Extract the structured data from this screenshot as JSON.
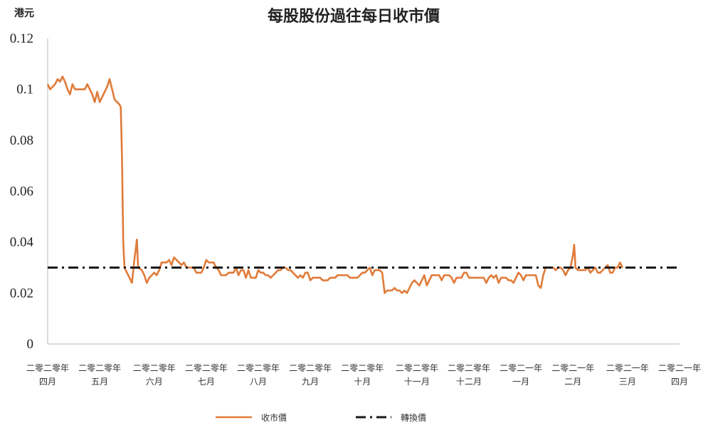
{
  "chart_data": {
    "type": "line",
    "title": "每股股份過往每日收市價",
    "ylabel": "港元",
    "ylim": [
      0,
      0.12
    ],
    "yticks": [
      {
        "value": 0,
        "label": "0"
      },
      {
        "value": 0.02,
        "label": "0.02"
      },
      {
        "value": 0.04,
        "label": "0.04"
      },
      {
        "value": 0.06,
        "label": "0.06"
      },
      {
        "value": 0.08,
        "label": "0.08"
      },
      {
        "value": 0.1,
        "label": "0.1"
      },
      {
        "value": 0.12,
        "label": "0.12"
      }
    ],
    "grid": false,
    "legend_position": "bottom",
    "x_range": [
      0,
      255
    ],
    "x_ticks": [
      {
        "x": 0,
        "line1": "二零二零年",
        "line2": "四月"
      },
      {
        "x": 21,
        "line1": "二零二零年",
        "line2": "五月"
      },
      {
        "x": 43,
        "line1": "二零二零年",
        "line2": "六月"
      },
      {
        "x": 64,
        "line1": "二零二零年",
        "line2": "七月"
      },
      {
        "x": 85,
        "line1": "二零二零年",
        "line2": "八月"
      },
      {
        "x": 106,
        "line1": "二零二零年",
        "line2": "九月"
      },
      {
        "x": 127,
        "line1": "二零二零年",
        "line2": "十月"
      },
      {
        "x": 149,
        "line1": "二零二零年",
        "line2": "十一月"
      },
      {
        "x": 170,
        "line1": "二零二零年",
        "line2": "十二月"
      },
      {
        "x": 191,
        "line1": "二零二一年",
        "line2": "一月"
      },
      {
        "x": 212,
        "line1": "二零二一年",
        "line2": "二月"
      },
      {
        "x": 234,
        "line1": "二零二一年",
        "line2": "三月"
      },
      {
        "x": 255,
        "line1": "二零二一年",
        "line2": "四月"
      }
    ],
    "series": [
      {
        "name": "收市價",
        "color": "#E07B39",
        "style": "solid",
        "points": [
          [
            0,
            0.102
          ],
          [
            1,
            0.1
          ],
          [
            2,
            0.101
          ],
          [
            3,
            0.102
          ],
          [
            4,
            0.104
          ],
          [
            5,
            0.103
          ],
          [
            6,
            0.105
          ],
          [
            7,
            0.103
          ],
          [
            8,
            0.1
          ],
          [
            9,
            0.098
          ],
          [
            10,
            0.102
          ],
          [
            11,
            0.1
          ],
          [
            12,
            0.1
          ],
          [
            13,
            0.1
          ],
          [
            14,
            0.1
          ],
          [
            15,
            0.1
          ],
          [
            16,
            0.102
          ],
          [
            17,
            0.1
          ],
          [
            18,
            0.098
          ],
          [
            19,
            0.095
          ],
          [
            20,
            0.099
          ],
          [
            21,
            0.095
          ],
          [
            22,
            0.097
          ],
          [
            23,
            0.099
          ],
          [
            24,
            0.101
          ],
          [
            25,
            0.104
          ],
          [
            26,
            0.1
          ],
          [
            27,
            0.096
          ],
          [
            28,
            0.095
          ],
          [
            29,
            0.094
          ],
          [
            29.5,
            0.093
          ],
          [
            30,
            0.073
          ],
          [
            30.5,
            0.04
          ],
          [
            31,
            0.03
          ],
          [
            33,
            0.026
          ],
          [
            34,
            0.024
          ],
          [
            35,
            0.033
          ],
          [
            35.5,
            0.037
          ],
          [
            36,
            0.041
          ],
          [
            36.5,
            0.03
          ],
          [
            38,
            0.029
          ],
          [
            39,
            0.027
          ],
          [
            40,
            0.024
          ],
          [
            41,
            0.026
          ],
          [
            42,
            0.027
          ],
          [
            43,
            0.028
          ],
          [
            44,
            0.027
          ],
          [
            45,
            0.029
          ],
          [
            46,
            0.032
          ],
          [
            47,
            0.032
          ],
          [
            48,
            0.032
          ],
          [
            49,
            0.033
          ],
          [
            50,
            0.031
          ],
          [
            51,
            0.034
          ],
          [
            52,
            0.033
          ],
          [
            53,
            0.032
          ],
          [
            54,
            0.031
          ],
          [
            55,
            0.032
          ],
          [
            56,
            0.03
          ],
          [
            57,
            0.03
          ],
          [
            58,
            0.03
          ],
          [
            59,
            0.03
          ],
          [
            60,
            0.028
          ],
          [
            61,
            0.028
          ],
          [
            62,
            0.028
          ],
          [
            63,
            0.03
          ],
          [
            64,
            0.033
          ],
          [
            65,
            0.032
          ],
          [
            66,
            0.032
          ],
          [
            67,
            0.032
          ],
          [
            68,
            0.03
          ],
          [
            69,
            0.029
          ],
          [
            70,
            0.027
          ],
          [
            71,
            0.027
          ],
          [
            72,
            0.027
          ],
          [
            73,
            0.028
          ],
          [
            74,
            0.028
          ],
          [
            75,
            0.028
          ],
          [
            76,
            0.03
          ],
          [
            77,
            0.027
          ],
          [
            78,
            0.029
          ],
          [
            79,
            0.029
          ],
          [
            80,
            0.026
          ],
          [
            81,
            0.029
          ],
          [
            82,
            0.026
          ],
          [
            83,
            0.026
          ],
          [
            84,
            0.026
          ],
          [
            85,
            0.029
          ],
          [
            86,
            0.028
          ],
          [
            87,
            0.028
          ],
          [
            88,
            0.027
          ],
          [
            89,
            0.027
          ],
          [
            90,
            0.026
          ],
          [
            91,
            0.027
          ],
          [
            92,
            0.028
          ],
          [
            93,
            0.029
          ],
          [
            94,
            0.029
          ],
          [
            95,
            0.03
          ],
          [
            96,
            0.03
          ],
          [
            97,
            0.029
          ],
          [
            98,
            0.029
          ],
          [
            99,
            0.028
          ],
          [
            100,
            0.027
          ],
          [
            101,
            0.026
          ],
          [
            102,
            0.027
          ],
          [
            103,
            0.026
          ],
          [
            104,
            0.028
          ],
          [
            105,
            0.028
          ],
          [
            106,
            0.025
          ],
          [
            107,
            0.026
          ],
          [
            108,
            0.026
          ],
          [
            109,
            0.026
          ],
          [
            110,
            0.026
          ],
          [
            111,
            0.025
          ],
          [
            112,
            0.025
          ],
          [
            113,
            0.025
          ],
          [
            114,
            0.026
          ],
          [
            115,
            0.026
          ],
          [
            116,
            0.026
          ],
          [
            117,
            0.027
          ],
          [
            118,
            0.027
          ],
          [
            119,
            0.027
          ],
          [
            120,
            0.027
          ],
          [
            121,
            0.027
          ],
          [
            122,
            0.026
          ],
          [
            123,
            0.026
          ],
          [
            124,
            0.026
          ],
          [
            125,
            0.026
          ],
          [
            126,
            0.027
          ],
          [
            127,
            0.028
          ],
          [
            128,
            0.028
          ],
          [
            129,
            0.029
          ],
          [
            130,
            0.03
          ],
          [
            131,
            0.027
          ],
          [
            132,
            0.029
          ],
          [
            133,
            0.029
          ],
          [
            134,
            0.029
          ],
          [
            135,
            0.028
          ],
          [
            136,
            0.02
          ],
          [
            137,
            0.021
          ],
          [
            138,
            0.021
          ],
          [
            139,
            0.021
          ],
          [
            140,
            0.022
          ],
          [
            141,
            0.021
          ],
          [
            142,
            0.021
          ],
          [
            143,
            0.02
          ],
          [
            144,
            0.021
          ],
          [
            145,
            0.02
          ],
          [
            146,
            0.022
          ],
          [
            147,
            0.024
          ],
          [
            148,
            0.025
          ],
          [
            149,
            0.024
          ],
          [
            150,
            0.023
          ],
          [
            151,
            0.025
          ],
          [
            152,
            0.027
          ],
          [
            153,
            0.023
          ],
          [
            154,
            0.025
          ],
          [
            155,
            0.027
          ],
          [
            156,
            0.027
          ],
          [
            157,
            0.027
          ],
          [
            158,
            0.027
          ],
          [
            159,
            0.025
          ],
          [
            160,
            0.027
          ],
          [
            161,
            0.027
          ],
          [
            162,
            0.027
          ],
          [
            163,
            0.026
          ],
          [
            164,
            0.024
          ],
          [
            165,
            0.026
          ],
          [
            166,
            0.026
          ],
          [
            167,
            0.026
          ],
          [
            168,
            0.028
          ],
          [
            169,
            0.028
          ],
          [
            170,
            0.026
          ],
          [
            171,
            0.026
          ],
          [
            172,
            0.026
          ],
          [
            173,
            0.026
          ],
          [
            174,
            0.026
          ],
          [
            175,
            0.026
          ],
          [
            176,
            0.026
          ],
          [
            177,
            0.024
          ],
          [
            178,
            0.026
          ],
          [
            179,
            0.027
          ],
          [
            180,
            0.026
          ],
          [
            181,
            0.027
          ],
          [
            182,
            0.024
          ],
          [
            183,
            0.026
          ],
          [
            184,
            0.026
          ],
          [
            185,
            0.026
          ],
          [
            186,
            0.025
          ],
          [
            187,
            0.025
          ],
          [
            188,
            0.024
          ],
          [
            189,
            0.026
          ],
          [
            190,
            0.028
          ],
          [
            191,
            0.027
          ],
          [
            192,
            0.025
          ],
          [
            193,
            0.027
          ],
          [
            194,
            0.027
          ],
          [
            195,
            0.027
          ],
          [
            196,
            0.027
          ],
          [
            197,
            0.027
          ],
          [
            198,
            0.023
          ],
          [
            199,
            0.022
          ],
          [
            200,
            0.027
          ],
          [
            201,
            0.03
          ],
          [
            202,
            0.03
          ],
          [
            203,
            0.03
          ],
          [
            204,
            0.03
          ],
          [
            205,
            0.029
          ],
          [
            206,
            0.03
          ],
          [
            207,
            0.03
          ],
          [
            208,
            0.029
          ],
          [
            209,
            0.027
          ],
          [
            210,
            0.029
          ],
          [
            211,
            0.03
          ],
          [
            212,
            0.035
          ],
          [
            212.5,
            0.039
          ],
          [
            213,
            0.03
          ],
          [
            214,
            0.029
          ],
          [
            215,
            0.029
          ],
          [
            216,
            0.029
          ],
          [
            217,
            0.029
          ],
          [
            218,
            0.03
          ],
          [
            219,
            0.028
          ],
          [
            220,
            0.029
          ],
          [
            221,
            0.03
          ],
          [
            222,
            0.028
          ],
          [
            223,
            0.028
          ],
          [
            224,
            0.029
          ],
          [
            225,
            0.03
          ],
          [
            226,
            0.031
          ],
          [
            227,
            0.028
          ],
          [
            228,
            0.028
          ],
          [
            229,
            0.03
          ],
          [
            230,
            0.03
          ],
          [
            231,
            0.032
          ],
          [
            232,
            0.03
          ]
        ]
      },
      {
        "name": "轉換價",
        "color": "#1a1a1a",
        "style": "dash-dot",
        "points": [
          [
            0,
            0.03
          ],
          [
            255,
            0.03
          ]
        ]
      }
    ]
  }
}
